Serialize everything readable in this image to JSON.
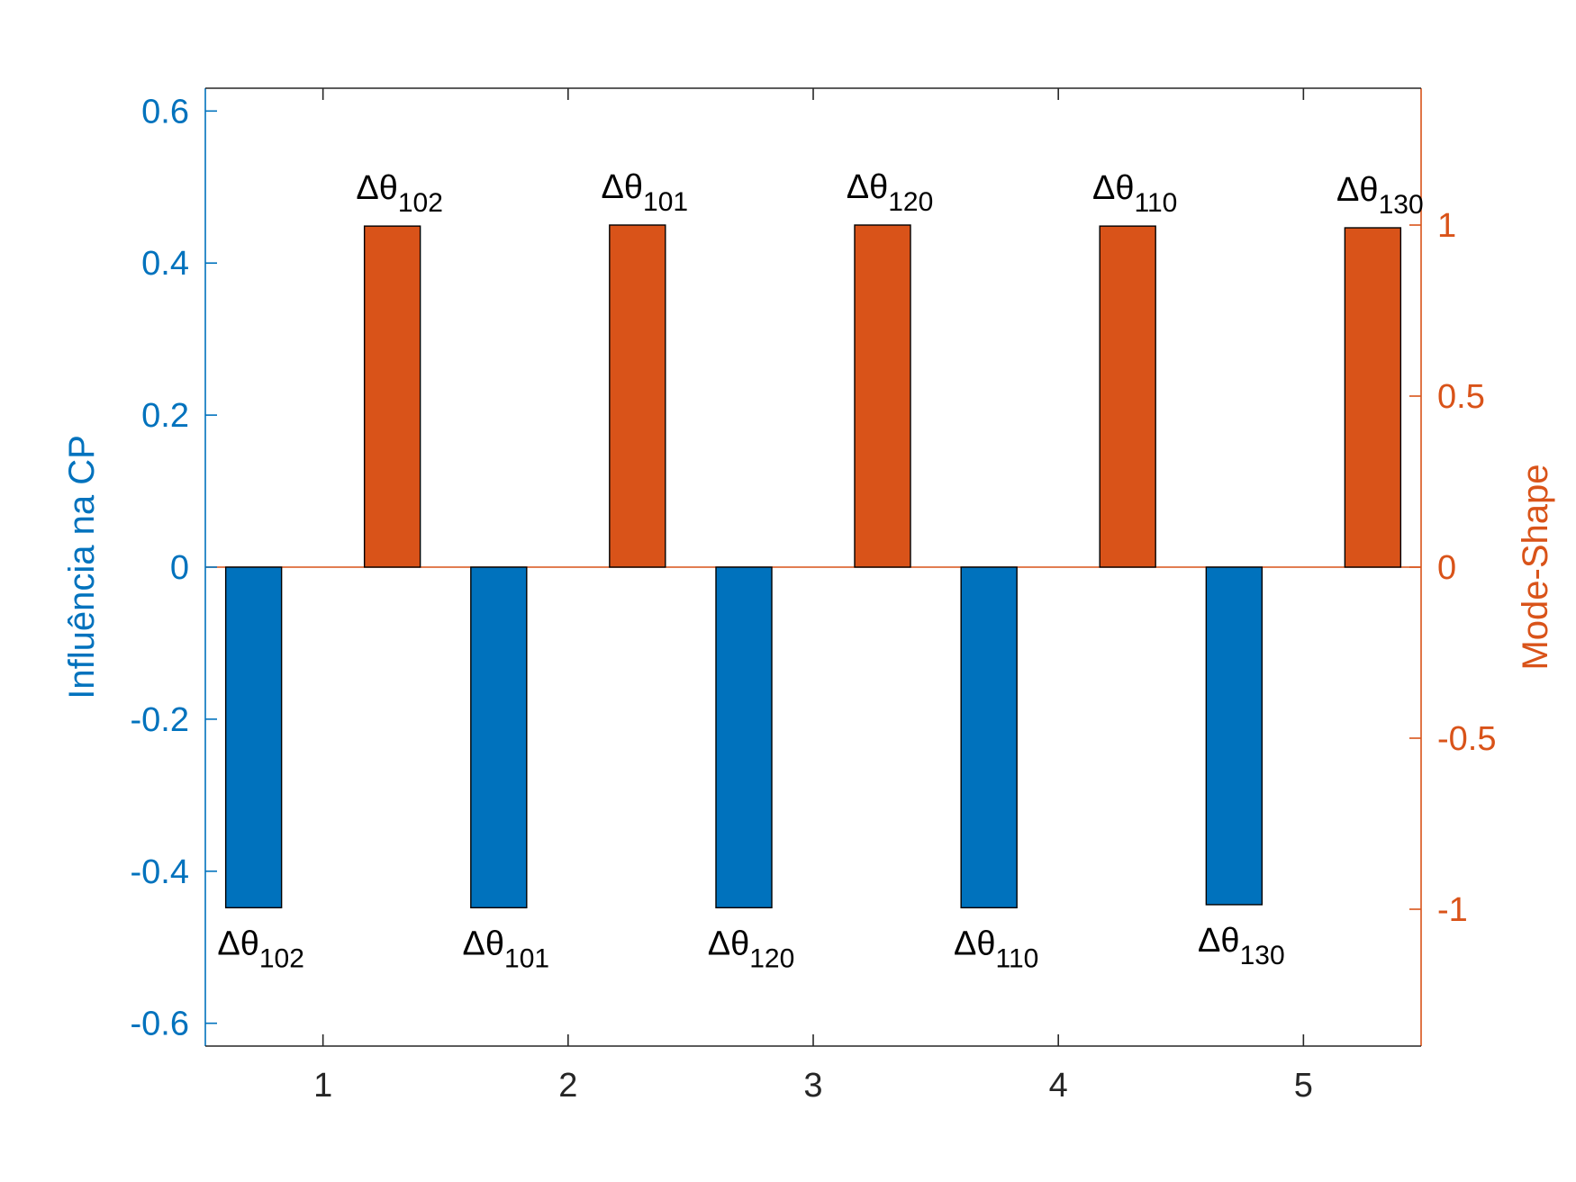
{
  "chart_data": {
    "type": "bar",
    "categories": [
      "1",
      "2",
      "3",
      "4",
      "5"
    ],
    "series": [
      {
        "axis": "left",
        "color": "#0072BD",
        "values": [
          -0.448,
          -0.448,
          -0.448,
          -0.448,
          -0.444
        ],
        "labels": [
          {
            "base": "Δθ",
            "sub": "102"
          },
          {
            "base": "Δθ",
            "sub": "101"
          },
          {
            "base": "Δθ",
            "sub": "120"
          },
          {
            "base": "Δθ",
            "sub": "110"
          },
          {
            "base": "Δθ",
            "sub": "130"
          }
        ]
      },
      {
        "axis": "right",
        "color": "#D95319",
        "values": [
          0.997,
          1.0,
          1.0,
          0.997,
          0.992
        ],
        "labels": [
          {
            "base": "Δθ",
            "sub": "102"
          },
          {
            "base": "Δθ",
            "sub": "101"
          },
          {
            "base": "Δθ",
            "sub": "120"
          },
          {
            "base": "Δθ",
            "sub": "110"
          },
          {
            "base": "Δθ",
            "sub": "130"
          }
        ]
      }
    ],
    "ylabel_left": "Influência na CP",
    "ylabel_right": "Mode-Shape",
    "ylim_left": [
      -0.63,
      0.63
    ],
    "ylim_right": [
      -1.4,
      1.4
    ],
    "yticks_left": [
      -0.6,
      -0.4,
      -0.2,
      0,
      0.2,
      0.4,
      0.6
    ],
    "yticks_left_labels": [
      "-0.6",
      "-0.4",
      "-0.2",
      "0",
      "0.2",
      "0.4",
      "0.6"
    ],
    "yticks_right": [
      -1,
      -0.5,
      0,
      0.5,
      1
    ],
    "yticks_right_labels": [
      "-1",
      "-0.5",
      "0",
      "0.5",
      "1"
    ],
    "xlim": [
      0.52,
      5.48
    ],
    "grid": false,
    "left_axis_color": "#0072BD",
    "right_axis_color": "#D95319",
    "x_axis_color": "#262626"
  }
}
